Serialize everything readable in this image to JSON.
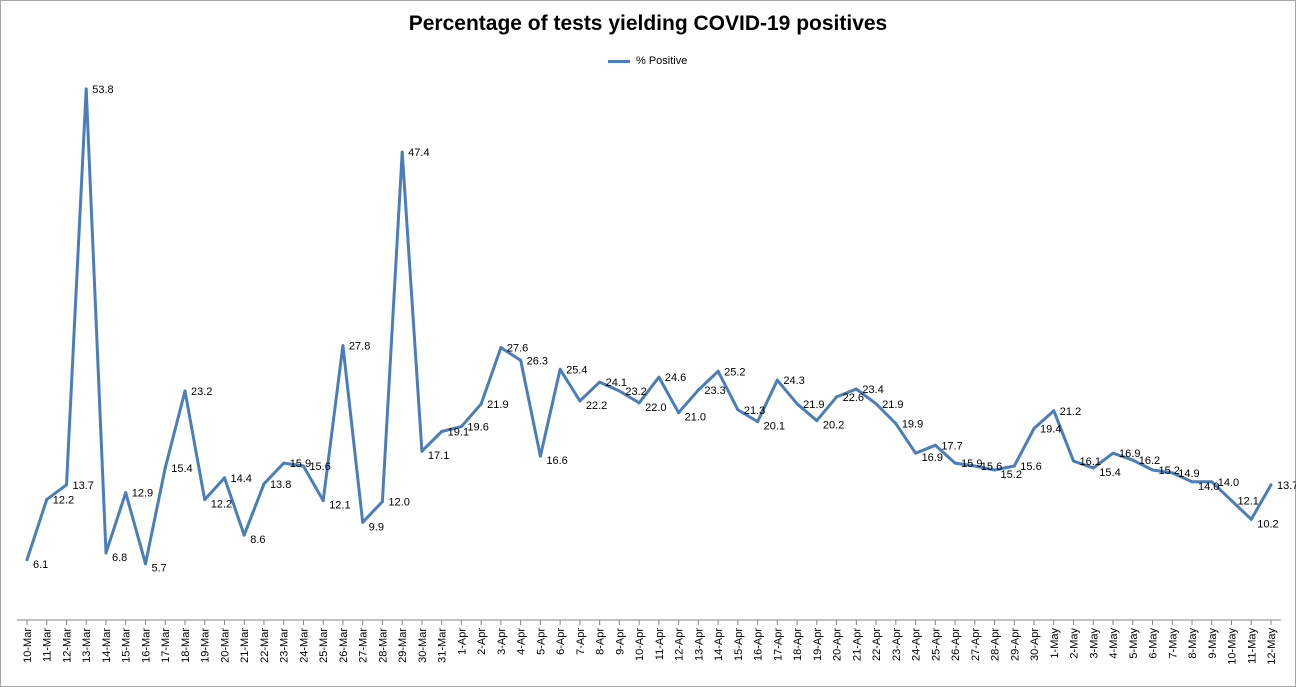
{
  "chart_data": {
    "type": "line",
    "title": "Percentage of tests yielding COVID-19 positives",
    "xlabel": "",
    "ylabel": "",
    "ylim": [
      0,
      60
    ],
    "grid": false,
    "legend_position": "top-center",
    "series_color": "#4a7ebb",
    "categories": [
      "10-Mar",
      "11-Mar",
      "12-Mar",
      "13-Mar",
      "14-Mar",
      "15-Mar",
      "16-Mar",
      "17-Mar",
      "18-Mar",
      "19-Mar",
      "20-Mar",
      "21-Mar",
      "22-Mar",
      "23-Mar",
      "24-Mar",
      "25-Mar",
      "26-Mar",
      "27-Mar",
      "28-Mar",
      "29-Mar",
      "30-Mar",
      "31-Mar",
      "1-Apr",
      "2-Apr",
      "3-Apr",
      "4-Apr",
      "5-Apr",
      "6-Apr",
      "7-Apr",
      "8-Apr",
      "9-Apr",
      "10-Apr",
      "11-Apr",
      "12-Apr",
      "13-Apr",
      "14-Apr",
      "15-Apr",
      "16-Apr",
      "17-Apr",
      "18-Apr",
      "19-Apr",
      "20-Apr",
      "21-Apr",
      "22-Apr",
      "23-Apr",
      "24-Apr",
      "25-Apr",
      "26-Apr",
      "27-Apr",
      "28-Apr",
      "29-Apr",
      "30-Apr",
      "1-May",
      "2-May",
      "3-May",
      "4-May",
      "5-May",
      "6-May",
      "7-May",
      "8-May",
      "9-May",
      "10-May",
      "11-May",
      "12-May"
    ],
    "series": [
      {
        "name": "% Positive",
        "values": [
          6.1,
          12.2,
          13.7,
          53.8,
          6.8,
          12.9,
          5.7,
          15.4,
          23.2,
          12.2,
          14.4,
          8.6,
          13.8,
          15.9,
          15.6,
          12.1,
          27.8,
          9.9,
          12.0,
          47.4,
          17.1,
          19.1,
          19.6,
          21.9,
          27.6,
          26.3,
          16.6,
          25.4,
          22.2,
          24.1,
          23.2,
          22.0,
          24.6,
          21.0,
          23.3,
          25.2,
          21.3,
          20.1,
          24.3,
          21.9,
          20.2,
          22.6,
          23.4,
          21.9,
          19.9,
          16.9,
          17.7,
          15.9,
          15.6,
          15.2,
          15.6,
          19.4,
          21.2,
          16.1,
          15.4,
          16.9,
          16.2,
          15.2,
          14.9,
          14.0,
          14.0,
          12.1,
          10.2,
          13.7
        ],
        "labels": [
          "6.1",
          "12.2",
          "13.7",
          "53.8",
          "6.8",
          "12.9",
          "5.7",
          "15.4",
          "23.2",
          "12.2",
          "14.4",
          "8.6",
          "13.8",
          "15.9",
          "15.6",
          "12.1",
          "27.8",
          "9.9",
          "12.0",
          "47.4",
          "17.1",
          "19.1",
          "19.6",
          "21.9",
          "27.6",
          "26.3",
          "16.6",
          "25.4",
          "22.2",
          "24.1",
          "23.2",
          "22.0",
          "24.6",
          "21.0",
          "23.3",
          "25.2",
          "21.3",
          "20.1",
          "24.3",
          "21.9",
          "20.2",
          "22.6",
          "23.4",
          "21.9",
          "19.9",
          "16.9",
          "17.7",
          "15.9",
          "15.6",
          "15.2",
          "15.6",
          "19.4",
          "21.2",
          "16.1",
          "15.4",
          "16.9",
          "16.2",
          "15.2",
          "14.9",
          "14.0",
          "14.0",
          "12.1",
          "10.2",
          "13.7"
        ]
      }
    ]
  }
}
